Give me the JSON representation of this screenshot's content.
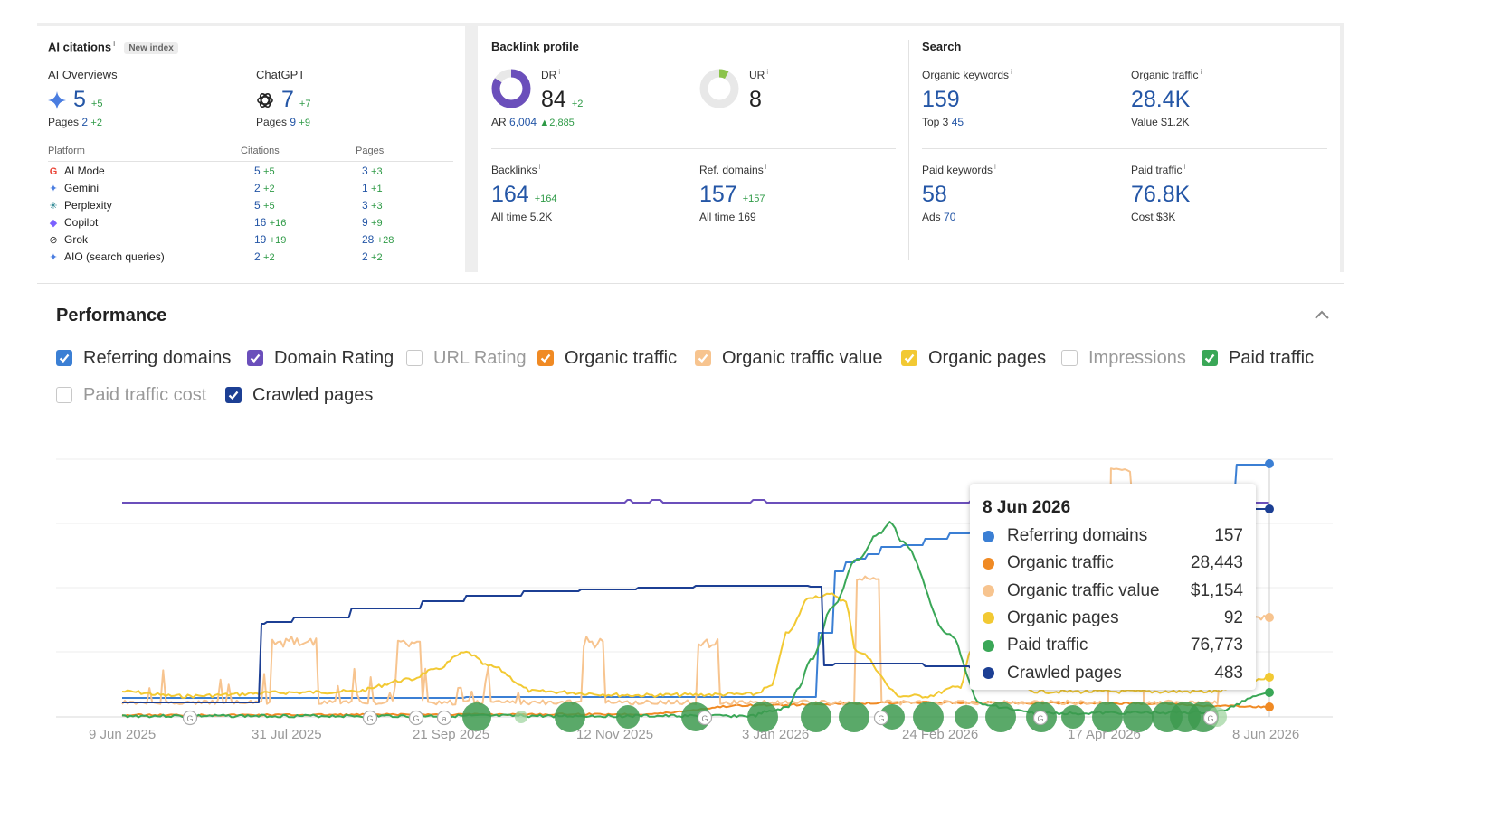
{
  "ai_citations": {
    "title": "AI citations",
    "info": "i",
    "badge": "New index",
    "overviews": {
      "label": "AI Overviews",
      "value": "5",
      "delta": "+5",
      "pages_label": "Pages",
      "pages": "2",
      "pages_delta": "+2"
    },
    "chatgpt": {
      "label": "ChatGPT",
      "value": "7",
      "delta": "+7",
      "pages_label": "Pages",
      "pages": "9",
      "pages_delta": "+9"
    },
    "table_headers": [
      "Platform",
      "Citations",
      "Pages"
    ],
    "platforms": [
      {
        "name": "AI Mode",
        "icon": "google-icon",
        "citations": "5",
        "citations_delta": "+5",
        "pages": "3",
        "pages_delta": "+3"
      },
      {
        "name": "Gemini",
        "icon": "gemini-icon",
        "citations": "2",
        "citations_delta": "+2",
        "pages": "1",
        "pages_delta": "+1"
      },
      {
        "name": "Perplexity",
        "icon": "perplexity-icon",
        "citations": "5",
        "citations_delta": "+5",
        "pages": "3",
        "pages_delta": "+3"
      },
      {
        "name": "Copilot",
        "icon": "copilot-icon",
        "citations": "16",
        "citations_delta": "+16",
        "pages": "9",
        "pages_delta": "+9"
      },
      {
        "name": "Grok",
        "icon": "grok-icon",
        "citations": "19",
        "citations_delta": "+19",
        "pages": "28",
        "pages_delta": "+28"
      },
      {
        "name": "AIO (search queries)",
        "icon": "gemini-icon",
        "citations": "2",
        "citations_delta": "+2",
        "pages": "2",
        "pages_delta": "+2"
      }
    ]
  },
  "backlink_profile": {
    "title": "Backlink profile",
    "dr": {
      "label": "DR",
      "value": "84",
      "delta": "+2",
      "ring_fraction": 0.84,
      "color": "#6b4fbb"
    },
    "ur": {
      "label": "UR",
      "value": "8",
      "ring_fraction": 0.08,
      "color": "#8bc34a"
    },
    "ar": {
      "label": "AR",
      "value": "6,004",
      "delta": "▲2,885"
    },
    "backlinks": {
      "label": "Backlinks",
      "value": "164",
      "delta": "+164",
      "sub_label": "All time",
      "sub_value": "5.2K"
    },
    "ref_domains": {
      "label": "Ref. domains",
      "value": "157",
      "delta": "+157",
      "sub_label": "All time",
      "sub_value": "169"
    }
  },
  "search": {
    "title": "Search",
    "organic_keywords": {
      "label": "Organic keywords",
      "value": "159",
      "sub_label": "Top 3",
      "sub_value": "45"
    },
    "organic_traffic": {
      "label": "Organic traffic",
      "value": "28.4K",
      "sub_label": "Value",
      "sub_value": "$1.2K"
    },
    "paid_keywords": {
      "label": "Paid keywords",
      "value": "58",
      "sub_label": "Ads",
      "sub_value": "70"
    },
    "paid_traffic": {
      "label": "Paid traffic",
      "value": "76.8K",
      "sub_label": "Cost",
      "sub_value": "$3K"
    }
  },
  "performance": {
    "title": "Performance",
    "collapse_icon": "chevron-up-icon",
    "legend": [
      {
        "label": "Referring domains",
        "checked": true,
        "color": "#3b7fd4"
      },
      {
        "label": "Domain Rating",
        "checked": true,
        "color": "#6b4fbb"
      },
      {
        "label": "URL Rating",
        "checked": false,
        "color": "#c8c8c8"
      },
      {
        "label": "Organic traffic",
        "checked": true,
        "color": "#f08a24"
      },
      {
        "label": "Organic traffic value",
        "checked": true,
        "color": "#f7c48f"
      },
      {
        "label": "Organic pages",
        "checked": true,
        "color": "#f2c933"
      },
      {
        "label": "Impressions",
        "checked": false,
        "color": "#c8c8c8"
      },
      {
        "label": "Paid traffic",
        "checked": true,
        "color": "#3aa757"
      },
      {
        "label": "Paid traffic cost",
        "checked": false,
        "color": "#c8c8c8"
      },
      {
        "label": "Crawled pages",
        "checked": true,
        "color": "#1c3f94"
      }
    ]
  },
  "chart_data": {
    "type": "line",
    "x_tick_labels": [
      "9 Jun 2025",
      "31 Jul 2025",
      "21 Sep 2025",
      "12 Nov 2025",
      "3 Jan 2026",
      "24 Feb 2026",
      "17 Apr 2026",
      "8 Jun 2026"
    ],
    "x": [
      "9 Jun 2025",
      "31 Jul 2025",
      "21 Sep 2025",
      "12 Nov 2025",
      "3 Jan 2026",
      "24 Feb 2026",
      "17 Apr 2026",
      "8 Jun 2026"
    ],
    "series": [
      {
        "name": "Referring domains",
        "color": "#3b7fd4",
        "values": [
          5,
          8,
          8,
          9,
          9,
          150,
          150,
          157
        ]
      },
      {
        "name": "Domain Rating",
        "color": "#6b4fbb",
        "values": [
          82,
          82,
          82,
          82,
          83,
          83,
          83,
          84
        ]
      },
      {
        "name": "Organic traffic",
        "color": "#f08a24",
        "values": [
          0,
          0,
          500,
          500,
          800,
          1200,
          2000,
          28443
        ]
      },
      {
        "name": "Organic traffic value",
        "color": "#f7c48f",
        "values": [
          0,
          300,
          100,
          100,
          200,
          900,
          1000,
          1154
        ]
      },
      {
        "name": "Organic pages",
        "color": "#f2c933",
        "values": [
          2,
          2,
          10,
          4,
          4,
          50,
          20,
          92
        ]
      },
      {
        "name": "Paid traffic",
        "color": "#3aa757",
        "values": [
          0,
          0,
          0,
          0,
          0,
          76000,
          10000,
          76773
        ]
      },
      {
        "name": "Crawled pages",
        "color": "#1c3f94",
        "values": [
          20,
          20,
          280,
          310,
          310,
          310,
          180,
          483
        ]
      }
    ],
    "tooltip": {
      "date": "8 Jun 2026",
      "rows": [
        {
          "name": "Referring domains",
          "value": "157",
          "color": "#3b7fd4"
        },
        {
          "name": "Organic traffic",
          "value": "28,443",
          "color": "#f08a24"
        },
        {
          "name": "Organic traffic value",
          "value": "$1,154",
          "color": "#f7c48f"
        },
        {
          "name": "Organic pages",
          "value": "92",
          "color": "#f2c933"
        },
        {
          "name": "Paid traffic",
          "value": "76,773",
          "color": "#3aa757"
        },
        {
          "name": "Crawled pages",
          "value": "483",
          "color": "#1c3f94"
        }
      ]
    },
    "grid": true,
    "legend_placement": "top"
  }
}
